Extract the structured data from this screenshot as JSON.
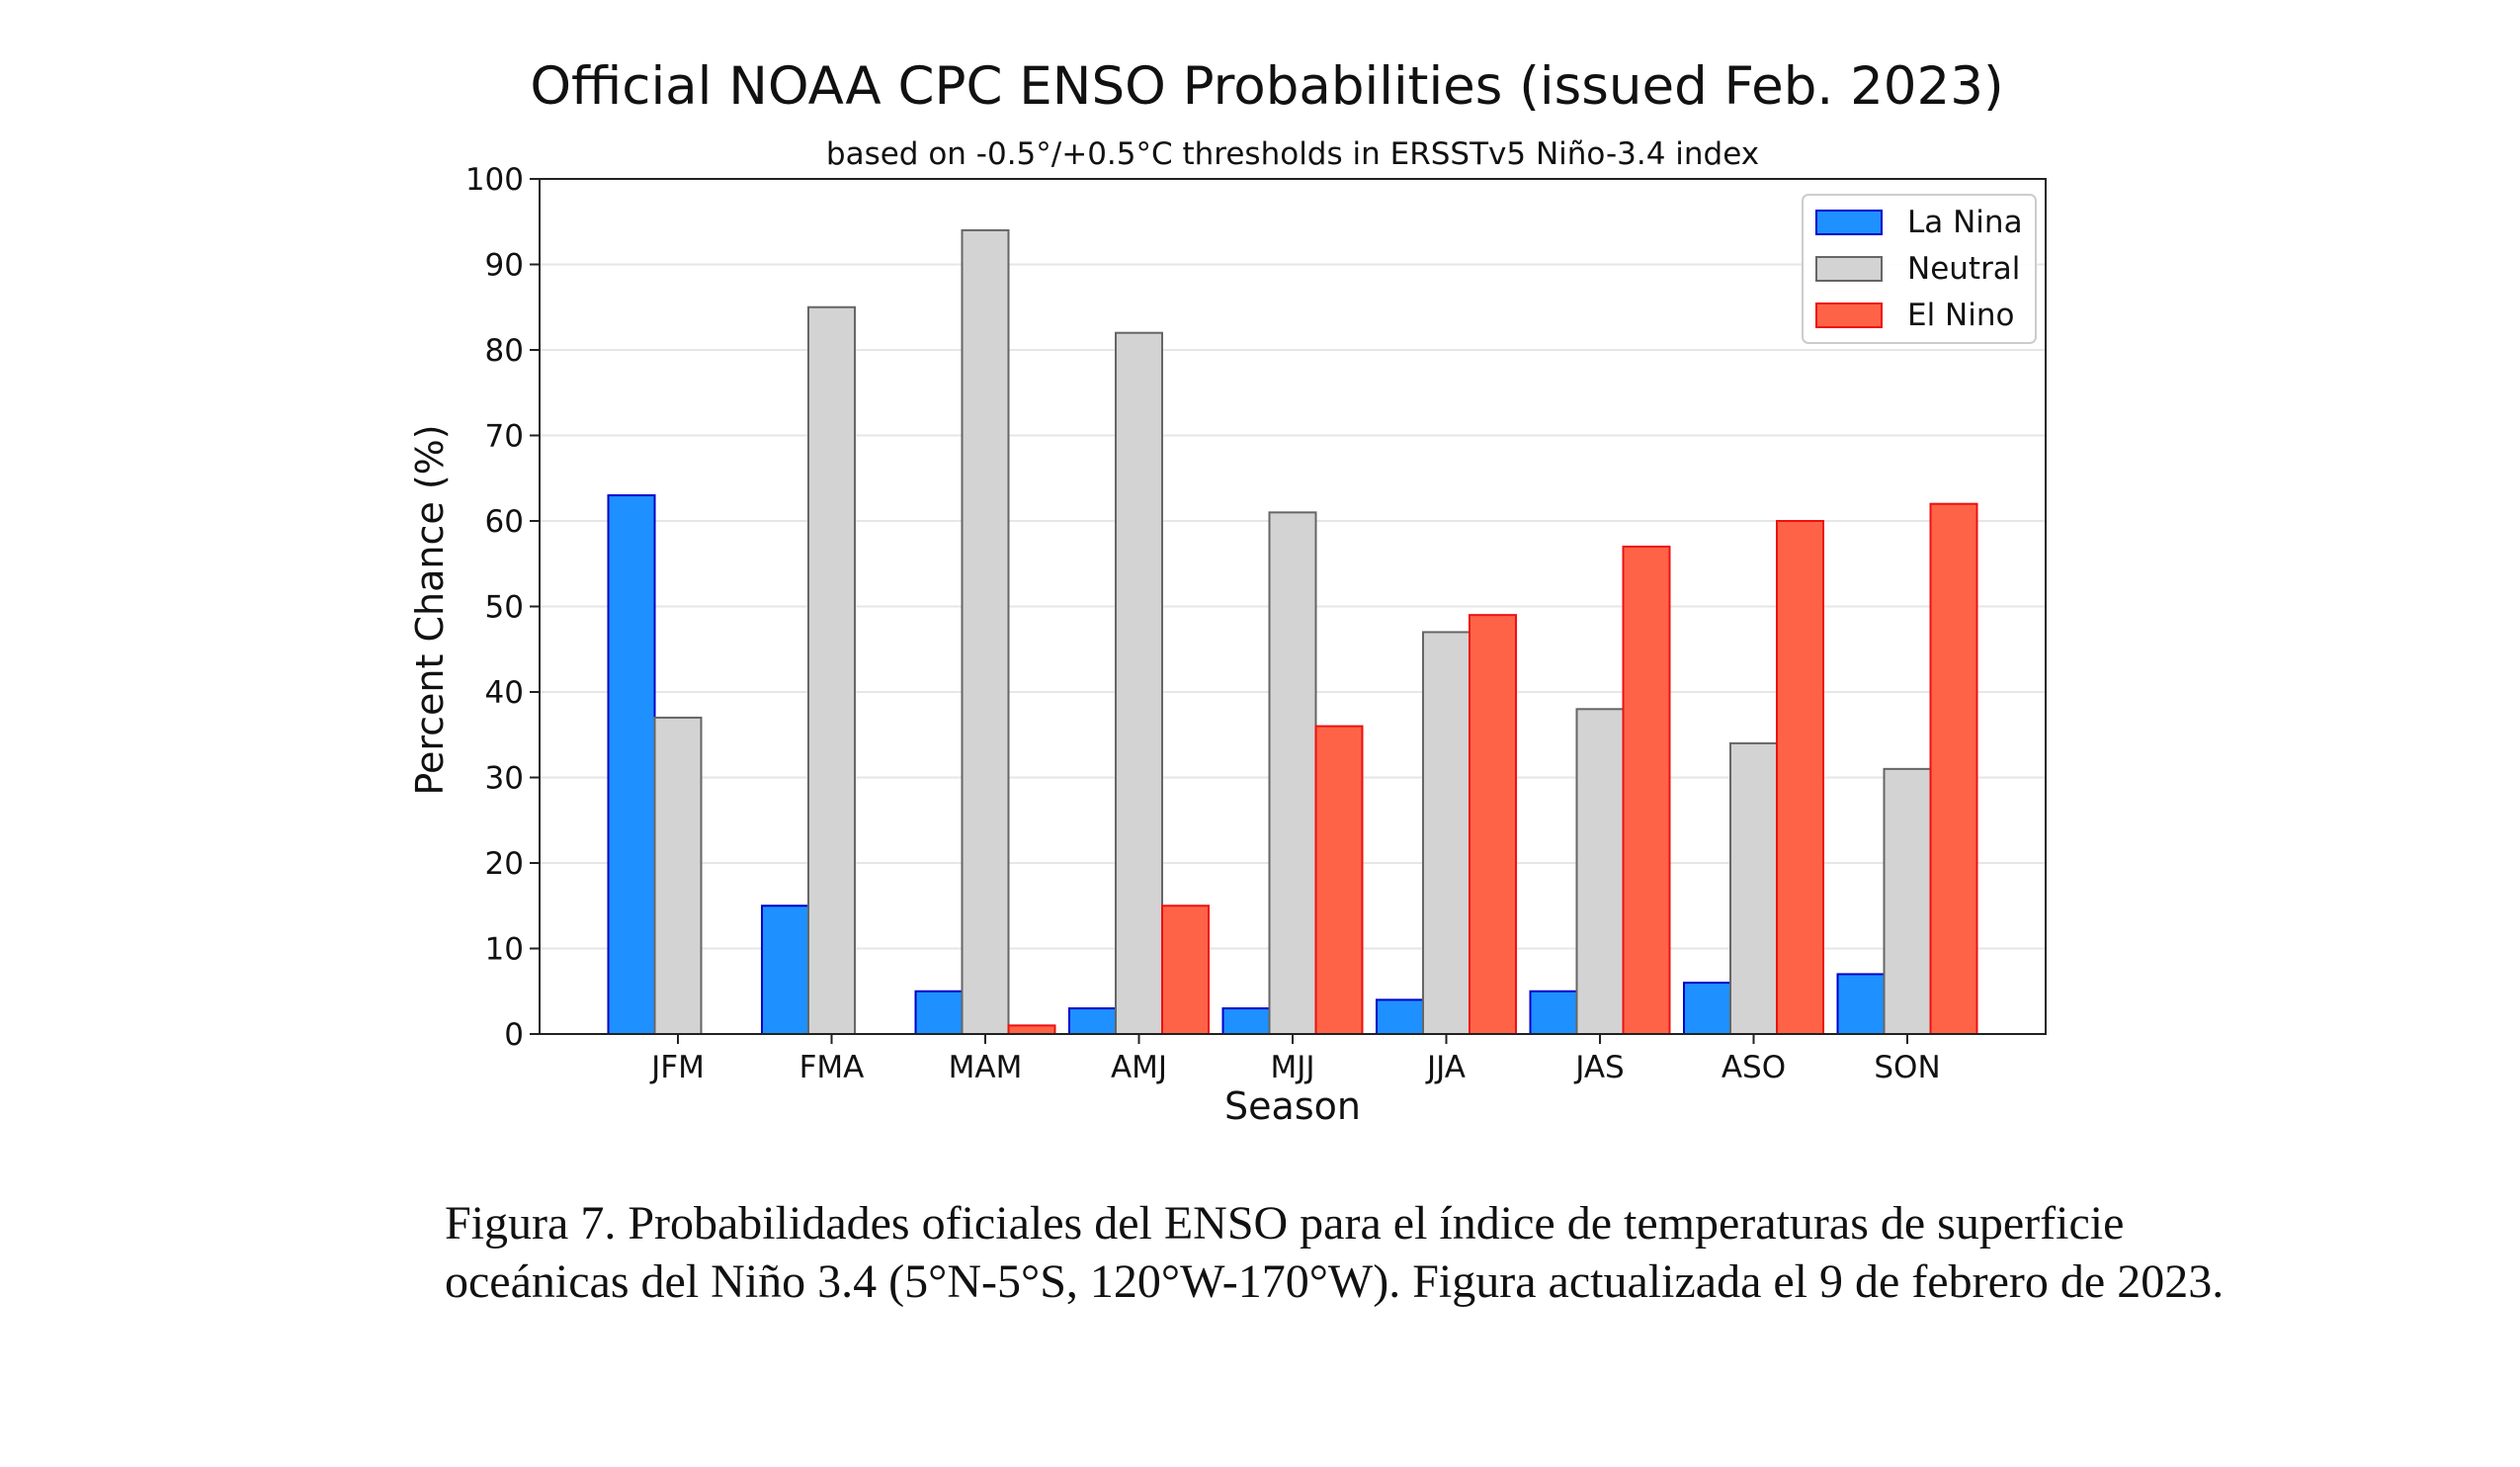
{
  "chart_data": {
    "type": "bar",
    "title": "Official NOAA CPC ENSO Probabilities (issued Feb. 2023)",
    "subtitle": "based on -0.5°/+0.5°C thresholds in ERSSTv5 Niño-3.4 index",
    "xlabel": "Season",
    "ylabel": "Percent Chance (%)",
    "ylim": [
      0,
      100
    ],
    "yticks": [
      "0",
      "10",
      "20",
      "30",
      "40",
      "50",
      "60",
      "70",
      "80",
      "90",
      "100"
    ],
    "categories": [
      "JFM",
      "FMA",
      "MAM",
      "AMJ",
      "MJJ",
      "JJA",
      "JAS",
      "ASO",
      "SON"
    ],
    "series": [
      {
        "name": "La Nina",
        "values": [
          63,
          15,
          5,
          3,
          3,
          4,
          5,
          6,
          7
        ],
        "color": "#1e90ff",
        "edge": "#0000cc"
      },
      {
        "name": "Neutral",
        "values": [
          37,
          85,
          94,
          82,
          61,
          47,
          38,
          34,
          31
        ],
        "color": "#d3d3d3",
        "edge": "#666666"
      },
      {
        "name": "El Nino",
        "values": [
          0,
          0,
          1,
          15,
          36,
          49,
          57,
          60,
          62
        ],
        "color": "#ff6347",
        "edge": "#ee1111"
      }
    ],
    "grid": true,
    "legend_position": "top-right"
  },
  "caption": "Figura 7. Probabilidades oficiales del ENSO para el índice de temperaturas de superficie oceánicas del Niño 3.4 (5°N-5°S, 120°W-170°W). Figura actualizada el 9 de febrero de 2023."
}
